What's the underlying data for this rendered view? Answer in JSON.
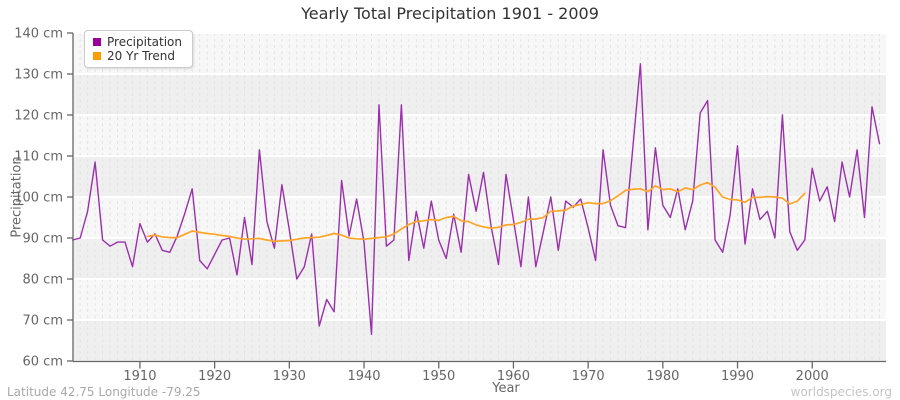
{
  "header": {
    "title": "Yearly Total Precipitation 1901 - 2009"
  },
  "footer": {
    "left_text": "Latitude 42.75 Longitude -79.25",
    "right_text": "worldspecies.org"
  },
  "legend": {
    "items": [
      {
        "label": "Precipitation",
        "color": "#990099"
      },
      {
        "label": "20 Yr Trend",
        "color": "#ff9d00"
      }
    ]
  },
  "colors": {
    "precip_line": "#9b30ad",
    "trend_line": "#ffa427",
    "band_dark": "#efefef",
    "band_light": "#f7f7f7",
    "grid_horizontal": "#ffffff",
    "grid_vertical_dashed": "#e3e3e3",
    "axis": "#666666",
    "tick_text": "#666666"
  },
  "chart_data": {
    "type": "line",
    "title": "Yearly Total Precipitation 1901 - 2009",
    "xlabel": "Year",
    "ylabel": "Precipitation",
    "ylim": [
      60,
      140
    ],
    "y_tick_unit": "cm",
    "y_ticks": [
      140,
      130,
      120,
      110,
      100,
      90,
      80,
      70,
      60
    ],
    "x_ticks": [
      1910,
      1920,
      1930,
      1940,
      1950,
      1960,
      1970,
      1980,
      1990,
      2000
    ],
    "x_range": [
      1901,
      2009
    ],
    "grid": "horizontal solid white lines each 10 cm, vertical dashed lines each year, alternating gray bands",
    "legend_position": "top-left",
    "series": [
      {
        "name": "Precipitation",
        "x_start": 1901,
        "values": [
          89.5,
          90,
          96.5,
          108.5,
          89.5,
          88,
          89,
          89,
          83,
          93.5,
          89,
          91,
          87,
          86.5,
          90.5,
          96,
          102,
          84.5,
          82.5,
          86,
          89.5,
          90,
          81,
          95,
          83.5,
          111.5,
          94,
          87.5,
          103,
          92,
          80,
          83,
          91,
          68.5,
          75,
          72,
          104,
          90.5,
          99.5,
          89,
          66.5,
          122.5,
          88,
          89.5,
          122.5,
          84.5,
          96.5,
          87.5,
          99,
          89.5,
          85,
          95.8,
          86.5,
          105.5,
          96.5,
          106,
          93,
          83.5,
          105.5,
          94.5,
          83,
          100,
          83,
          91.5,
          100,
          87,
          99,
          97.5,
          99.5,
          92.5,
          84.5,
          111.5,
          98,
          93,
          92.5,
          112.5,
          132.5,
          92,
          112,
          98,
          95,
          102,
          92,
          99,
          120.5,
          123.5,
          89.5,
          86.5,
          95.5,
          112.5,
          88.5,
          102,
          94.5,
          96.5,
          90,
          120,
          91.5,
          87,
          89.5,
          107,
          99,
          102.5,
          94,
          108.5,
          100,
          111.5,
          95,
          122,
          113
        ]
      },
      {
        "name": "20 Yr Trend",
        "x_start": 1911,
        "values": [
          90.4,
          90.7,
          90.3,
          90.1,
          90.1,
          90.9,
          91.7,
          91.4,
          91.1,
          90.9,
          90.6,
          90.4,
          90,
          89.7,
          89.8,
          89.9,
          89.5,
          89.2,
          89.3,
          89.4,
          89.7,
          90,
          90.1,
          90.2,
          90.6,
          91.1,
          90.7,
          90,
          89.8,
          89.7,
          89.9,
          90.1,
          90.3,
          91,
          92.2,
          93.3,
          94,
          94.2,
          94.5,
          94.3,
          95,
          95.3,
          94.2,
          94,
          93.2,
          92.7,
          92.4,
          92.6,
          93.2,
          93.3,
          93.8,
          94.6,
          94.6,
          95,
          96.5,
          96.6,
          96.8,
          97.8,
          98.2,
          98.6,
          98.4,
          98.4,
          99.1,
          100.3,
          101.6,
          101.9,
          102,
          101.3,
          102.7,
          101.8,
          102,
          101.3,
          102.2,
          101.8,
          102.9,
          103.5,
          102.4,
          100,
          99.4,
          99.3,
          98.7,
          99.9,
          99.9,
          100.1,
          100,
          99.7,
          98.3,
          99,
          100.9
        ]
      }
    ]
  }
}
